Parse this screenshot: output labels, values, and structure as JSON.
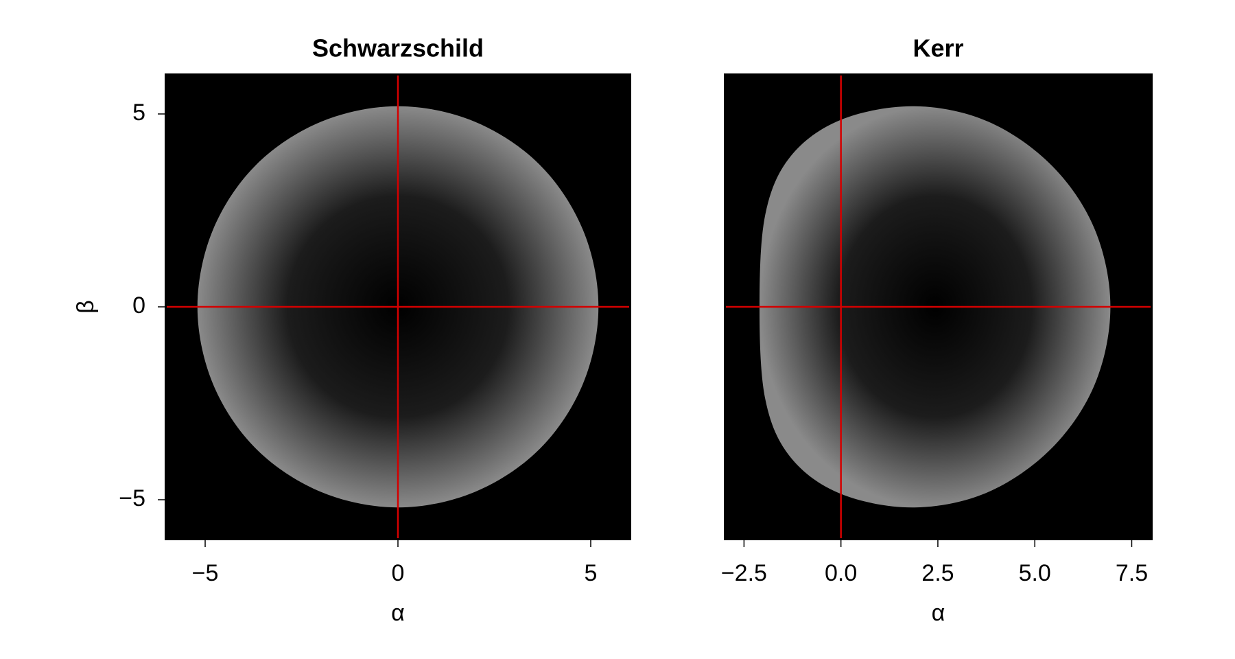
{
  "chart_data": [
    {
      "type": "shadow",
      "title": "Schwarzschild",
      "xlabel": "α",
      "ylabel": "β",
      "x": [
        5.2,
        4.8,
        3.68,
        1.99,
        0,
        -1.99,
        -3.68,
        -4.8,
        -5.2,
        -4.8,
        -3.68,
        -1.99,
        0,
        1.99,
        3.68,
        4.8
      ],
      "y": [
        0,
        1.99,
        3.68,
        4.8,
        5.2,
        4.8,
        3.68,
        1.99,
        0,
        -1.99,
        -3.68,
        -4.8,
        -5.2,
        -4.8,
        -3.68,
        -1.99
      ],
      "color": "#8a8a8a",
      "background": "#000000",
      "line_color": "#d40000",
      "hline": 0,
      "vline": 0,
      "xlim": [
        -6.05,
        6.05
      ],
      "ylim": [
        -6.05,
        6.05
      ],
      "xticks": [
        {
          "value": -5,
          "label": "−5"
        },
        0,
        5
      ],
      "yticks": [
        {
          "value": -5,
          "label": "−5"
        },
        0,
        5
      ]
    },
    {
      "type": "shadow",
      "title": "Kerr",
      "xlabel": "α",
      "x": [
        6.95,
        6.55,
        5.45,
        3.8,
        1.9,
        0.0,
        -1.3,
        -1.95,
        -2.1,
        -1.95,
        -1.3,
        0.0,
        1.9,
        3.8,
        5.45,
        6.55
      ],
      "y": [
        0,
        2.0,
        3.65,
        4.8,
        5.2,
        4.85,
        3.9,
        2.4,
        0,
        -2.4,
        -3.9,
        -4.85,
        -5.2,
        -4.8,
        -3.65,
        -2.0
      ],
      "color": "#8a8a8a",
      "background": "#000000",
      "line_color": "#d40000",
      "hline": 0,
      "vline": 0,
      "xlim": [
        -3.02,
        8.04
      ],
      "ylim": [
        -6.05,
        6.05
      ],
      "xticks": [
        {
          "value": -2.5,
          "label": "−2.5"
        },
        {
          "value": 0,
          "label": "0.0"
        },
        2.5,
        {
          "value": 5,
          "label": "5.0"
        },
        7.5
      ]
    }
  ]
}
